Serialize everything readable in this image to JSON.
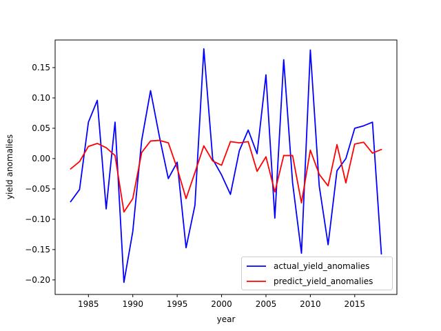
{
  "chart_data": {
    "type": "line",
    "title": "",
    "xlabel": "year",
    "ylabel": "yield anomalies",
    "xlim": [
      1981.25,
      2019.75
    ],
    "ylim": [
      -0.224,
      0.1955
    ],
    "xticks": [
      1985,
      1990,
      1995,
      2000,
      2005,
      2010,
      2015
    ],
    "xtick_labels": [
      "1985",
      "1990",
      "1995",
      "2000",
      "2005",
      "2010",
      "2015"
    ],
    "yticks": [
      -0.2,
      -0.15,
      -0.1,
      -0.05,
      0.0,
      0.05,
      0.1,
      0.15
    ],
    "ytick_labels": [
      "−0.20",
      "−0.15",
      "−0.10",
      "−0.05",
      "0.00",
      "0.05",
      "0.10",
      "0.15"
    ],
    "grid": false,
    "legend_position": "lower-right",
    "x": [
      1983,
      1984,
      1985,
      1986,
      1987,
      1988,
      1989,
      1990,
      1991,
      1992,
      1993,
      1994,
      1995,
      1996,
      1997,
      1998,
      1999,
      2000,
      2001,
      2002,
      2003,
      2004,
      2005,
      2006,
      2007,
      2008,
      2009,
      2010,
      2011,
      2012,
      2013,
      2014,
      2015,
      2016,
      2017,
      2018
    ],
    "series": [
      {
        "name": "actual_yield_anomalies",
        "color": "#0000ff",
        "values": [
          -0.071,
          -0.051,
          0.06,
          0.096,
          -0.083,
          0.06,
          -0.204,
          -0.12,
          0.03,
          0.112,
          0.036,
          -0.033,
          -0.006,
          -0.147,
          -0.077,
          0.181,
          -0.001,
          -0.027,
          -0.059,
          0.013,
          0.047,
          0.008,
          0.138,
          -0.098,
          0.163,
          -0.04,
          -0.156,
          0.179,
          -0.045,
          -0.142,
          -0.02,
          0.0,
          0.05,
          0.054,
          0.06,
          -0.157
        ]
      },
      {
        "name": "predict_yield_anomalies",
        "color": "#ff0000",
        "values": [
          -0.017,
          -0.005,
          0.02,
          0.025,
          0.018,
          0.005,
          -0.088,
          -0.066,
          0.01,
          0.029,
          0.03,
          0.026,
          -0.016,
          -0.066,
          -0.023,
          0.021,
          -0.004,
          -0.011,
          0.028,
          0.026,
          0.028,
          -0.021,
          0.003,
          -0.055,
          0.005,
          0.005,
          -0.073,
          0.014,
          -0.026,
          -0.045,
          0.023,
          -0.04,
          0.024,
          0.027,
          0.009,
          0.015
        ]
      }
    ]
  }
}
